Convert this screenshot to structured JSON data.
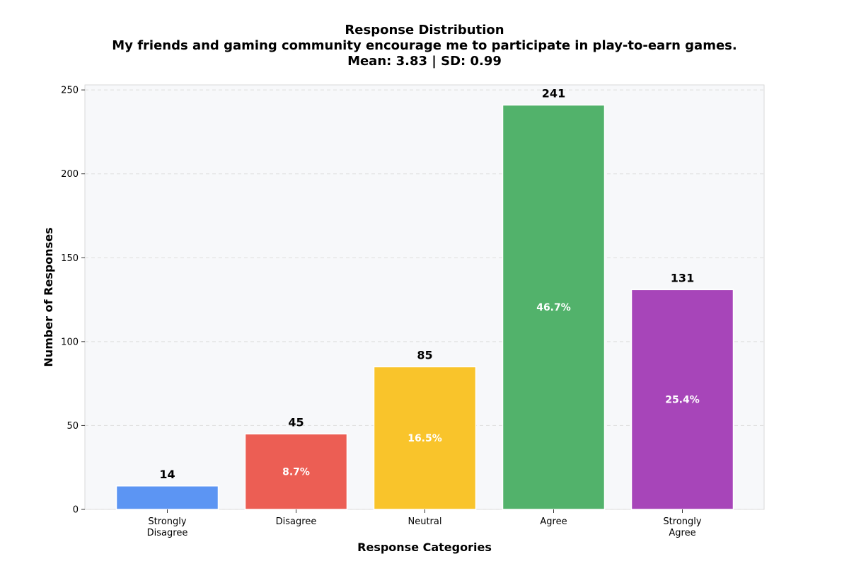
{
  "chart_data": {
    "type": "bar",
    "title_lines": [
      "Response Distribution",
      "My friends and gaming community encourage me to participate in play-to-earn games.",
      "Mean: 3.83 | SD: 0.99"
    ],
    "xlabel": "Response Categories",
    "ylabel": "Number of Responses",
    "categories": [
      [
        "Strongly",
        "Disagree"
      ],
      [
        "Disagree"
      ],
      [
        "Neutral"
      ],
      [
        "Agree"
      ],
      [
        "Strongly",
        "Agree"
      ]
    ],
    "values": [
      14,
      45,
      85,
      241,
      131
    ],
    "percent_labels": [
      "",
      "8.7%",
      "16.5%",
      "46.7%",
      "25.4%"
    ],
    "colors": [
      "#5c95f3",
      "#ec5e54",
      "#f9c42b",
      "#52b26b",
      "#a745b9"
    ],
    "ylim": [
      0,
      253
    ],
    "yticks": [
      0,
      50,
      100,
      150,
      200,
      250
    ],
    "grid": true,
    "plot_background": "#f7f8fa"
  }
}
